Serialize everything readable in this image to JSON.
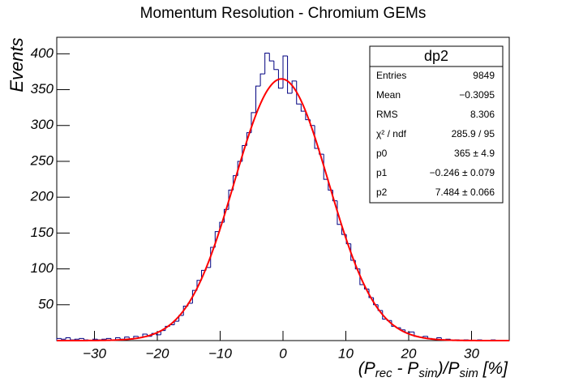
{
  "chart_data": {
    "type": "histogram",
    "title": "Momentum Resolution - Chromium GEMs",
    "ylabel": "Events",
    "xlabel": [
      "(P",
      "rec",
      " - P",
      "sim",
      ")/P",
      "sim",
      " [%]"
    ],
    "color": "#000080",
    "bins": [
      -36,
      -35.28,
      -34.56,
      -33.84,
      -33.12,
      -32.4,
      -31.68,
      -30.96,
      -30.24,
      -29.52,
      -28.8,
      -28.08,
      -27.36,
      -26.64,
      -25.92,
      -25.2,
      -24.48,
      -23.76,
      -23.04,
      -22.32,
      -21.6,
      -20.88,
      -20.16,
      -19.44,
      -18.72,
      -18,
      -17.28,
      -16.56,
      -15.84,
      -15.12,
      -14.4,
      -13.68,
      -12.96,
      -12.24,
      -11.52,
      -10.8,
      -10.08,
      -9.36,
      -8.64,
      -7.92,
      -7.2,
      -6.48,
      -5.76,
      -5.04,
      -4.32,
      -3.6,
      -2.88,
      -2.16,
      -1.44,
      -0.72,
      0,
      0.72,
      1.44,
      2.16,
      2.88,
      3.6,
      4.32,
      5.04,
      5.76,
      6.48,
      7.2,
      7.92,
      8.64,
      9.36,
      10.08,
      10.8,
      11.52,
      12.24,
      12.96,
      13.68,
      14.4,
      15.12,
      15.84,
      16.56,
      17.28,
      18,
      18.72,
      19.44,
      20.16,
      20.88,
      21.6,
      22.32,
      23.04,
      23.76,
      24.48,
      25.2,
      25.92,
      26.64,
      27.36,
      28.08,
      28.8,
      29.52,
      30.24,
      30.96,
      31.68,
      32.4,
      33.12,
      33.84,
      34.56,
      35.28,
      36
    ],
    "values": [
      3,
      2,
      4,
      1,
      2,
      3,
      1,
      0,
      2,
      1,
      2,
      3,
      1,
      4,
      2,
      5,
      2,
      6,
      4,
      9,
      6,
      10,
      8,
      14,
      20,
      22,
      27,
      35,
      48,
      52,
      70,
      84,
      98,
      102,
      130,
      152,
      165,
      183,
      210,
      230,
      250,
      272,
      290,
      318,
      355,
      372,
      401,
      390,
      378,
      352,
      397,
      345,
      362,
      330,
      320,
      308,
      300,
      268,
      260,
      225,
      210,
      195,
      162,
      148,
      135,
      112,
      100,
      78,
      72,
      60,
      50,
      42,
      30,
      28,
      20,
      18,
      15,
      11,
      12,
      6,
      5,
      6,
      3,
      2,
      4,
      1,
      2,
      0,
      1,
      0,
      1,
      0,
      0,
      1,
      0,
      0,
      1,
      0,
      0,
      0
    ],
    "xlim": [
      -36,
      36
    ],
    "ylim": [
      0,
      423
    ],
    "xticks": [
      {
        "value": -30,
        "label": "−30"
      },
      {
        "value": -20,
        "label": "−20"
      },
      {
        "value": -10,
        "label": "−10"
      },
      0,
      10,
      20,
      30
    ],
    "yticks": [
      50,
      100,
      150,
      200,
      250,
      300,
      350,
      400
    ],
    "fit": {
      "color": "#ff0000",
      "params": [
        {
          "name": "p0",
          "value": 365,
          "error": 4.9,
          "label": "365 ± 4.9"
        },
        {
          "name": "p1",
          "value": -0.246,
          "error": 0.079,
          "label": "−0.246 ± 0.079"
        },
        {
          "name": "p2",
          "value": 7.484,
          "error": 0.066,
          "label": "7.484 ± 0.066"
        }
      ]
    },
    "stats": {
      "title": "dp2",
      "rows": [
        {
          "label": "Entries",
          "value": "9849"
        },
        {
          "label": "Mean",
          "value": "−0.3095"
        },
        {
          "label": "RMS",
          "value": "8.306"
        },
        {
          "label": "χ² / ndf",
          "value": "285.9 / 95"
        }
      ]
    }
  }
}
